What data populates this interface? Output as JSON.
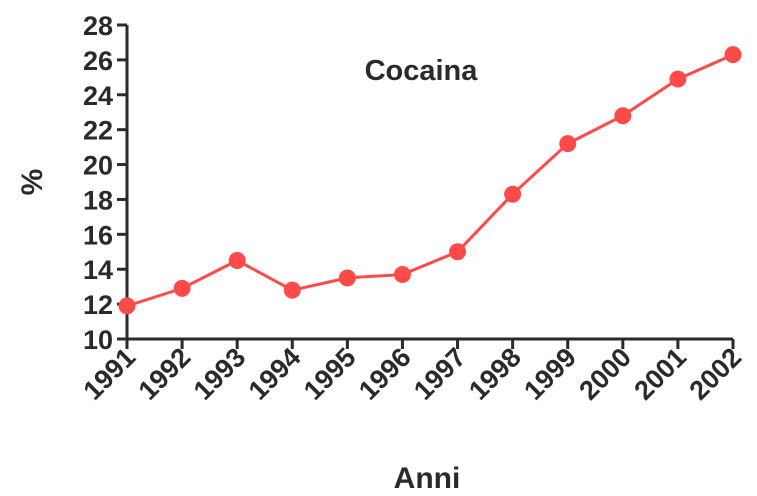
{
  "chart_data": {
    "type": "line",
    "title": "Cocaina",
    "xlabel": "Anni",
    "ylabel": "%",
    "categories": [
      "1991",
      "1992",
      "1993",
      "1994",
      "1995",
      "1996",
      "1997",
      "1998",
      "1999",
      "2000",
      "2001",
      "2002"
    ],
    "series": [
      {
        "values": [
          11.9,
          12.9,
          14.5,
          12.8,
          13.5,
          13.7,
          15.0,
          18.3,
          21.2,
          22.8,
          24.9,
          26.3
        ]
      }
    ],
    "ylim": [
      10,
      28
    ],
    "yticks": [
      10,
      12,
      14,
      16,
      18,
      20,
      22,
      24,
      26,
      28
    ],
    "grid": false,
    "legend": "none",
    "colors": {
      "series": "#ff4a4a",
      "axis": "#2a2a2a",
      "background": "#ffffff"
    }
  }
}
